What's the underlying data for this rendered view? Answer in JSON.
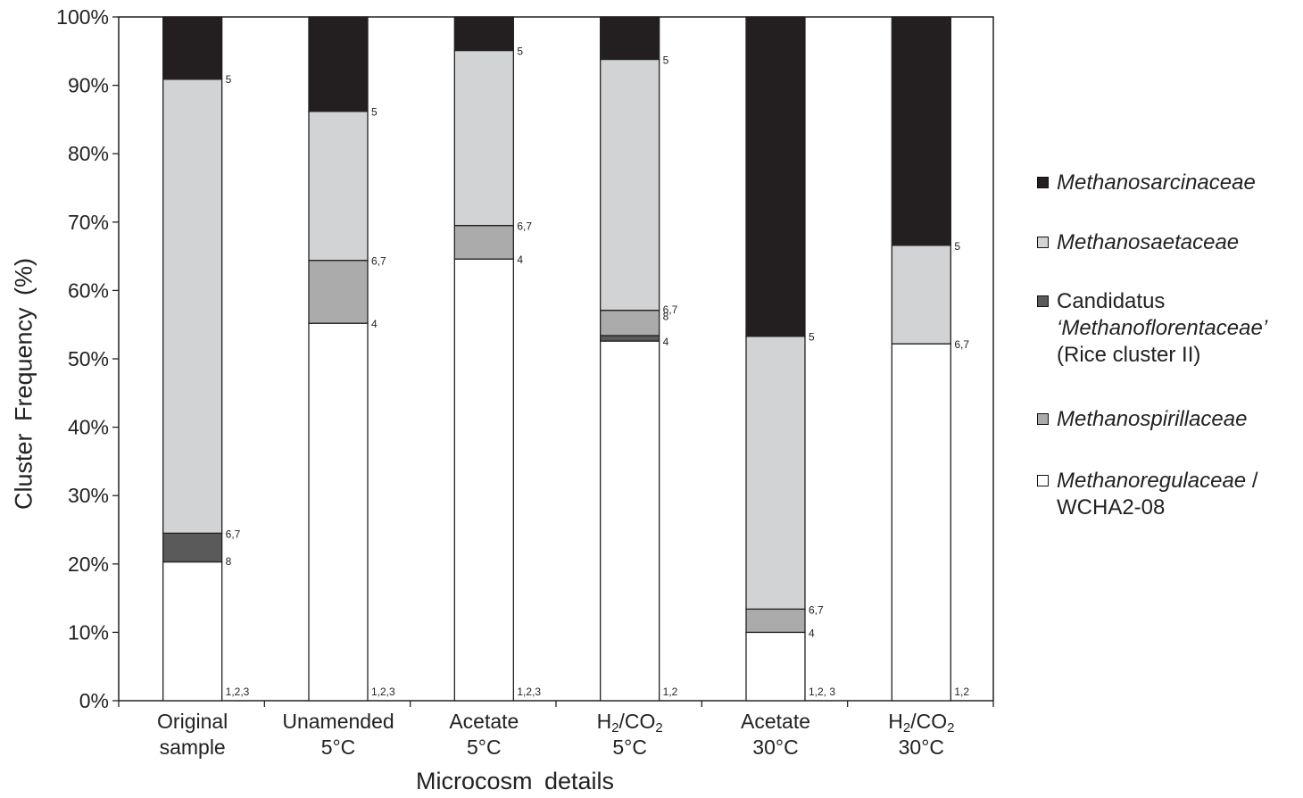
{
  "chart_data": {
    "type": "bar",
    "stacked": true,
    "xlabel": "Microcosm details",
    "ylabel": "Cluster Frequency (%)",
    "ylim": [
      0,
      100
    ],
    "y_ticks": [
      "0%",
      "10%",
      "20%",
      "30%",
      "40%",
      "50%",
      "60%",
      "70%",
      "80%",
      "90%",
      "100%"
    ],
    "grid": false,
    "legend_position": "right",
    "categories": [
      {
        "line1": "Original",
        "line2": "sample"
      },
      {
        "line1": "Unamended",
        "line2": "5°C"
      },
      {
        "line1": "Acetate",
        "line2": "5°C"
      },
      {
        "line1": "H2/CO2",
        "line2": "5°C"
      },
      {
        "line1": "Acetate",
        "line2": "30°C"
      },
      {
        "line1": "H2/CO2",
        "line2": "30°C"
      }
    ],
    "series": [
      {
        "name": "Methanoregulaceae / WCHA2-08",
        "color": "#ffffff",
        "values": [
          20.3,
          55.2,
          64.6,
          52.6,
          10.0,
          52.2
        ]
      },
      {
        "name": "Candidatus 'Methanoflorentaceae' (Rice cluster II)",
        "color": "#5a5a5a",
        "values": [
          4.2,
          0,
          0,
          0.8,
          0,
          0
        ]
      },
      {
        "name": "Methanospirillaceae",
        "color": "#ababab",
        "values": [
          0,
          9.2,
          4.9,
          3.7,
          3.4,
          0
        ]
      },
      {
        "name": "Methanosaetaceae",
        "color": "#d2d3d5",
        "values": [
          66.4,
          21.8,
          25.6,
          36.7,
          39.9,
          14.4
        ]
      },
      {
        "name": "Methanosarcinaceae",
        "color": "#231f20",
        "values": [
          9.1,
          13.8,
          4.9,
          6.2,
          46.7,
          33.4
        ]
      }
    ],
    "annotations": [
      {
        "bar": 0,
        "at": 100,
        "label": "5",
        "y": 91
      },
      {
        "bar": 0,
        "label": "6,7",
        "y": 24.5
      },
      {
        "bar": 0,
        "label": "8",
        "y": 20.5
      },
      {
        "bar": 0,
        "label": "1,2,3",
        "y": 1
      },
      {
        "bar": 1,
        "label": "5",
        "y": 86.2
      },
      {
        "bar": 1,
        "label": "6,7",
        "y": 64.4
      },
      {
        "bar": 1,
        "label": "4",
        "y": 55.2
      },
      {
        "bar": 1,
        "label": "1,2,3",
        "y": 1
      },
      {
        "bar": 2,
        "label": "5",
        "y": 95.1
      },
      {
        "bar": 2,
        "label": "6,7",
        "y": 69.5
      },
      {
        "bar": 2,
        "label": "4",
        "y": 64.6
      },
      {
        "bar": 2,
        "label": "1,2,3",
        "y": 1
      },
      {
        "bar": 3,
        "label": "5",
        "y": 93.8
      },
      {
        "bar": 3,
        "label": "6,7",
        "y": 57.3
      },
      {
        "bar": 3,
        "label": "8",
        "y": 56.3
      },
      {
        "bar": 3,
        "label": "4",
        "y": 52.6
      },
      {
        "bar": 3,
        "label": "1,2",
        "y": 1
      },
      {
        "bar": 4,
        "label": "5",
        "y": 53.3
      },
      {
        "bar": 4,
        "label": "6,7",
        "y": 13.4
      },
      {
        "bar": 4,
        "label": "4",
        "y": 10.0
      },
      {
        "bar": 4,
        "label": "1,2, 3",
        "y": 1
      },
      {
        "bar": 5,
        "label": "5",
        "y": 66.6
      },
      {
        "bar": 5,
        "label": "6,7",
        "y": 52.2
      },
      {
        "bar": 5,
        "label": "1,2",
        "y": 1
      }
    ]
  },
  "legend": {
    "sarcin": {
      "name": "Methanosarcinaceae",
      "color": "#231f20"
    },
    "saet": {
      "name": "Methanosaetaceae",
      "color": "#d2d3d5"
    },
    "flor": {
      "line1": "Candidatus",
      "line2": "‘Methanoflorentaceae’",
      "line3": "(Rice cluster II)",
      "color": "#5a5a5a"
    },
    "spir": {
      "name": "Methanospirillaceae",
      "color": "#ababab"
    },
    "reg": {
      "line1": "Methanoregulaceae",
      "line1_suffix": " /",
      "line2": "WCHA2-08",
      "color": "#ffffff"
    }
  },
  "labels": {
    "xlabel": "Microcosm details",
    "ylabel": "Cluster Frequency (%)"
  }
}
